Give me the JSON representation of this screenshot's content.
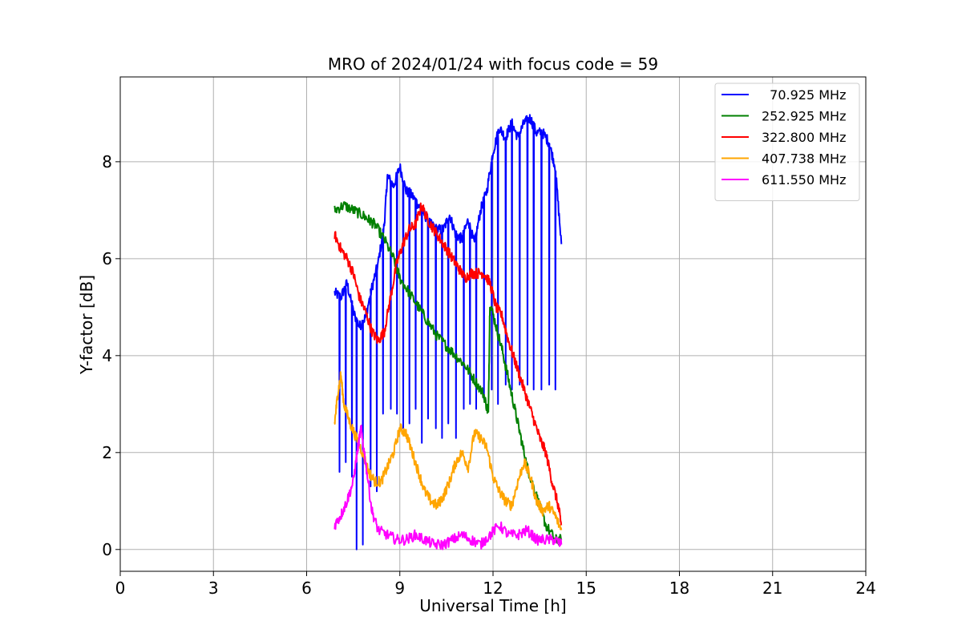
{
  "chart_data": {
    "type": "line",
    "title": "MRO of 2024/01/24 with focus code = 59",
    "xlabel": "Universal Time [h]",
    "ylabel": "Y-factor [dB]",
    "xlim": [
      0,
      24
    ],
    "ylim": [
      -0.45,
      9.75
    ],
    "xticks": [
      0,
      3,
      6,
      9,
      12,
      15,
      18,
      21,
      24
    ],
    "yticks": [
      0,
      2,
      4,
      6,
      8
    ],
    "grid": true,
    "legend_position": "top-right",
    "series": [
      {
        "name": "  70.925 MHz",
        "color": "#0000ff",
        "x": [
          6.9,
          7.1,
          7.3,
          7.5,
          7.7,
          7.9,
          8.1,
          8.3,
          8.5,
          8.6,
          8.8,
          9.0,
          9.2,
          9.4,
          9.6,
          9.8,
          10.0,
          10.2,
          10.4,
          10.6,
          10.8,
          11.0,
          11.2,
          11.4,
          11.6,
          11.8,
          12.0,
          12.2,
          12.4,
          12.6,
          12.8,
          13.0,
          13.2,
          13.4,
          13.6,
          13.8,
          14.0,
          14.2
        ],
        "y": [
          5.3,
          5.2,
          5.5,
          4.9,
          4.6,
          4.8,
          5.4,
          5.9,
          6.7,
          7.7,
          7.5,
          7.9,
          7.4,
          7.3,
          7.1,
          6.9,
          6.7,
          6.6,
          6.6,
          6.9,
          6.5,
          6.4,
          6.8,
          6.3,
          7.0,
          7.4,
          8.2,
          8.7,
          8.5,
          8.8,
          8.5,
          8.8,
          8.9,
          8.6,
          8.6,
          8.4,
          7.9,
          6.3
        ],
        "dips": [
          7.05,
          7.25,
          7.45,
          7.6,
          7.8,
          8.05,
          8.25,
          8.45,
          8.7,
          8.9,
          9.1,
          9.3,
          9.5,
          9.7,
          9.9,
          10.15,
          10.35,
          10.55,
          10.8,
          11.05,
          11.25,
          11.45,
          11.7,
          11.95,
          12.15,
          12.4,
          12.6,
          12.85,
          13.1,
          13.3,
          13.55,
          13.8,
          14.0
        ],
        "dip_values": [
          1.6,
          1.8,
          1.5,
          0.0,
          0.1,
          1.3,
          1.2,
          2.8,
          2.9,
          2.8,
          2.5,
          2.6,
          2.9,
          2.2,
          2.7,
          2.5,
          2.3,
          2.6,
          2.3,
          2.9,
          3.0,
          2.9,
          3.1,
          3.3,
          3.0,
          3.4,
          3.3,
          3.4,
          3.4,
          3.3,
          3.3,
          3.4,
          3.3
        ]
      },
      {
        "name": "252.925 MHz",
        "color": "#008000",
        "x": [
          6.9,
          7.2,
          7.5,
          7.8,
          8.0,
          8.2,
          8.5,
          8.8,
          9.0,
          9.3,
          9.6,
          9.9,
          10.2,
          10.5,
          10.8,
          11.1,
          11.4,
          11.7,
          11.85,
          11.9,
          12.1,
          12.3,
          12.5,
          12.7,
          12.9,
          13.1,
          13.3,
          13.5,
          13.7,
          14.0,
          14.2
        ],
        "y": [
          7.0,
          7.1,
          7.0,
          6.9,
          6.8,
          6.7,
          6.4,
          6.0,
          5.6,
          5.3,
          5.0,
          4.7,
          4.4,
          4.2,
          4.0,
          3.8,
          3.5,
          3.2,
          2.8,
          5.1,
          4.6,
          4.1,
          3.5,
          2.9,
          2.3,
          1.7,
          1.3,
          0.9,
          0.5,
          0.2,
          0.2
        ]
      },
      {
        "name": "322.800 MHz",
        "color": "#ff0000",
        "x": [
          6.9,
          7.1,
          7.3,
          7.5,
          7.7,
          7.9,
          8.1,
          8.3,
          8.5,
          8.7,
          8.9,
          9.1,
          9.3,
          9.5,
          9.7,
          9.9,
          10.1,
          10.3,
          10.5,
          10.7,
          10.9,
          11.1,
          11.3,
          11.5,
          11.7,
          11.9,
          12.1,
          12.3,
          12.5,
          12.7,
          12.9,
          13.1,
          13.3,
          13.5,
          13.7,
          13.9,
          14.1,
          14.2
        ],
        "y": [
          6.5,
          6.2,
          6.0,
          5.7,
          5.2,
          4.9,
          4.5,
          4.3,
          4.5,
          5.2,
          5.9,
          6.3,
          6.6,
          6.7,
          7.1,
          6.8,
          6.6,
          6.4,
          6.2,
          6.0,
          5.8,
          5.6,
          5.7,
          5.7,
          5.7,
          5.5,
          5.0,
          4.8,
          4.3,
          3.9,
          3.5,
          3.1,
          2.7,
          2.3,
          2.0,
          1.4,
          0.9,
          0.5
        ]
      },
      {
        "name": "407.738 MHz",
        "color": "#ffa500",
        "x": [
          6.9,
          7.0,
          7.1,
          7.2,
          7.4,
          7.6,
          7.8,
          8.0,
          8.2,
          8.4,
          8.6,
          8.8,
          9.0,
          9.2,
          9.4,
          9.6,
          9.8,
          10.0,
          10.2,
          10.4,
          10.6,
          10.8,
          11.0,
          11.2,
          11.4,
          11.6,
          11.8,
          12.0,
          12.2,
          12.4,
          12.6,
          12.8,
          13.0,
          13.2,
          13.4,
          13.6,
          13.8,
          14.0,
          14.2
        ],
        "y": [
          2.6,
          3.2,
          3.6,
          3.0,
          2.6,
          2.3,
          2.0,
          1.6,
          1.4,
          1.4,
          1.7,
          2.0,
          2.5,
          2.4,
          2.0,
          1.6,
          1.2,
          1.0,
          0.9,
          1.1,
          1.4,
          1.8,
          2.0,
          1.7,
          2.4,
          2.3,
          2.1,
          1.5,
          1.2,
          1.0,
          0.9,
          1.4,
          1.8,
          1.5,
          1.0,
          0.8,
          0.9,
          0.7,
          0.4
        ]
      },
      {
        "name": "611.550 MHz",
        "color": "#ff00ff",
        "x": [
          6.9,
          7.1,
          7.3,
          7.5,
          7.65,
          7.75,
          7.9,
          8.1,
          8.3,
          8.6,
          8.9,
          9.2,
          9.5,
          9.8,
          10.1,
          10.4,
          10.7,
          11.0,
          11.3,
          11.6,
          11.9,
          12.2,
          12.5,
          12.8,
          13.1,
          13.4,
          13.7,
          14.0,
          14.2
        ],
        "y": [
          0.5,
          0.7,
          1.0,
          1.4,
          2.1,
          2.5,
          1.8,
          0.8,
          0.4,
          0.3,
          0.2,
          0.2,
          0.3,
          0.2,
          0.1,
          0.1,
          0.2,
          0.3,
          0.2,
          0.1,
          0.3,
          0.5,
          0.3,
          0.3,
          0.4,
          0.2,
          0.2,
          0.2,
          0.1
        ]
      }
    ]
  }
}
